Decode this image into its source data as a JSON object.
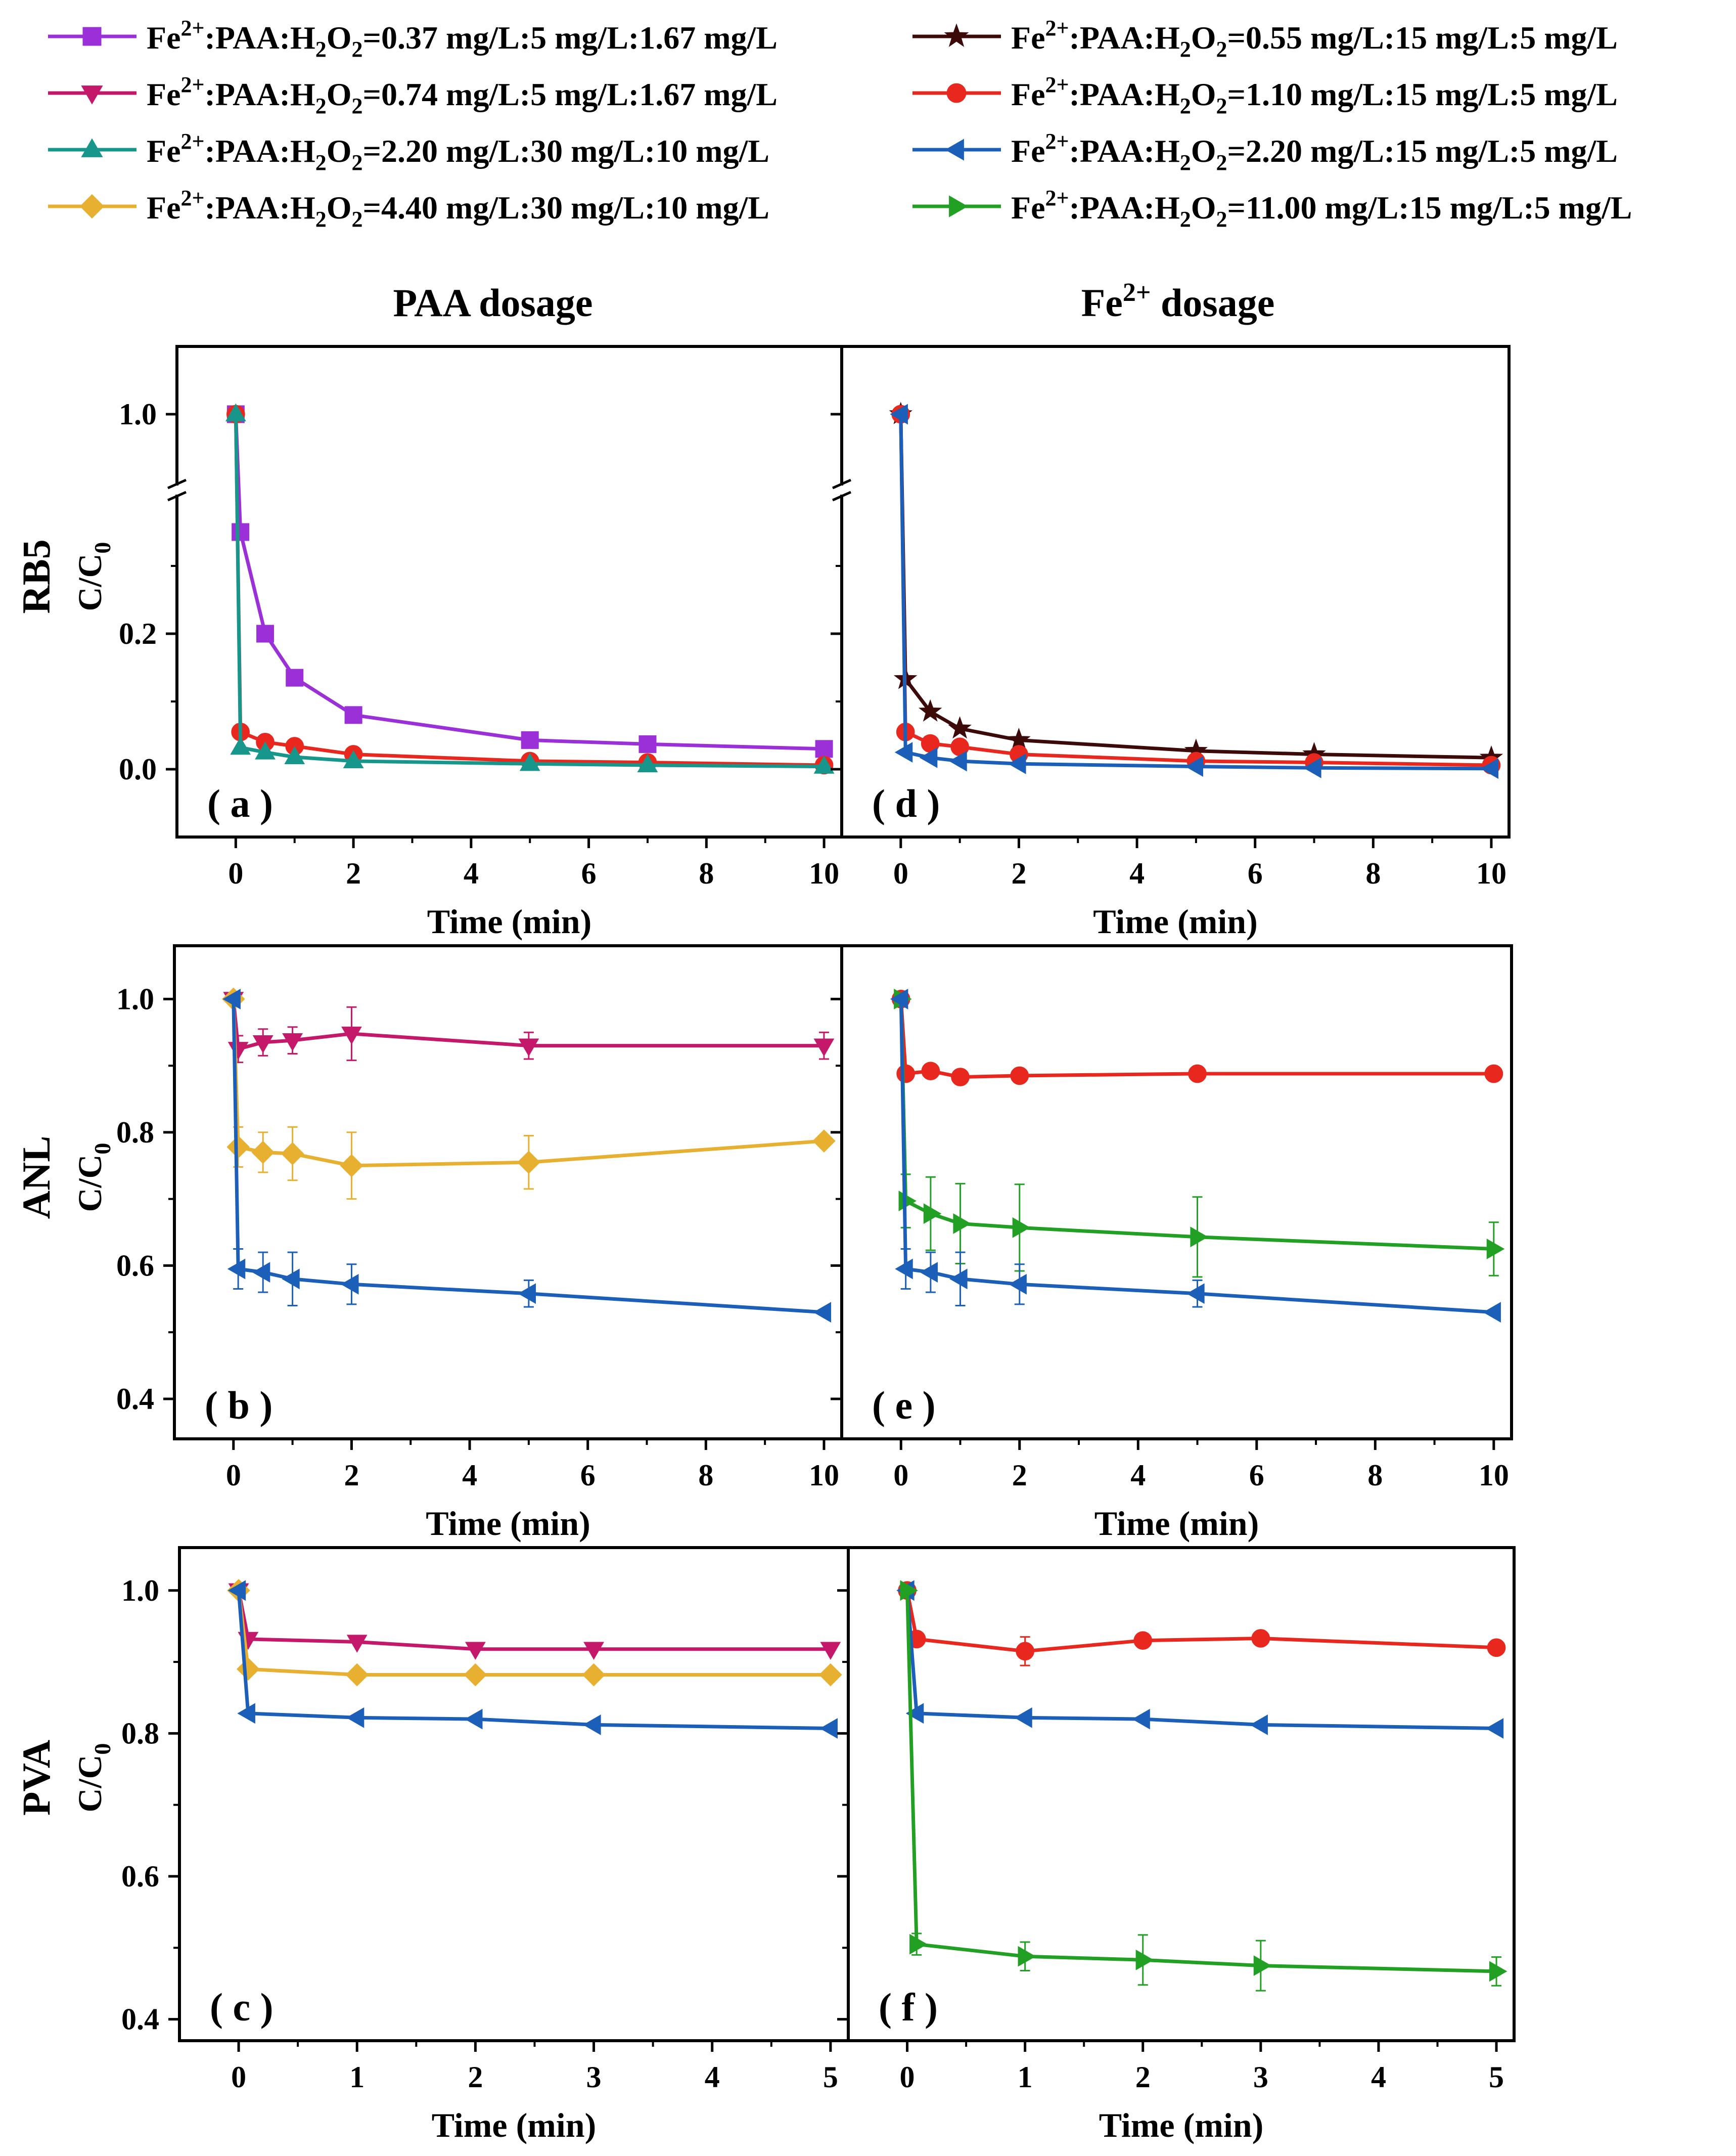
{
  "legend": [
    {
      "id": "s1",
      "formula_prefix": "Fe",
      "sup": "2+",
      "mid": ":PAA:H",
      "sub1": "2",
      "mid2": "O",
      "sub2": "2",
      "suffix": "=0.37 mg/L:5 mg/L:1.67 mg/L",
      "color": "#9b30d9",
      "marker": "square"
    },
    {
      "id": "s5",
      "formula_prefix": "Fe",
      "sup": "2+",
      "mid": ":PAA:H",
      "sub1": "2",
      "mid2": "O",
      "sub2": "2",
      "suffix": "=0.55 mg/L:15 mg/L:5 mg/L",
      "color": "#3d0a0a",
      "marker": "star"
    },
    {
      "id": "s2",
      "formula_prefix": "Fe",
      "sup": "2+",
      "mid": ":PAA:H",
      "sub1": "2",
      "mid2": "O",
      "sub2": "2",
      "suffix": "=0.74 mg/L:5 mg/L:1.67 mg/L",
      "color": "#c4186a",
      "marker": "triangle-down"
    },
    {
      "id": "s6",
      "formula_prefix": "Fe",
      "sup": "2+",
      "mid": ":PAA:H",
      "sub1": "2",
      "mid2": "O",
      "sub2": "2",
      "suffix": "=1.10 mg/L:15 mg/L:5 mg/L",
      "color": "#e8281e",
      "marker": "circle"
    },
    {
      "id": "s3",
      "formula_prefix": "Fe",
      "sup": "2+",
      "mid": ":PAA:H",
      "sub1": "2",
      "mid2": "O",
      "sub2": "2",
      "suffix": "=2.20 mg/L:30 mg/L:10 mg/L",
      "color": "#17968c",
      "marker": "triangle-up"
    },
    {
      "id": "s7",
      "formula_prefix": "Fe",
      "sup": "2+",
      "mid": ":PAA:H",
      "sub1": "2",
      "mid2": "O",
      "sub2": "2",
      "suffix": "=2.20 mg/L:15 mg/L:5 mg/L",
      "color": "#1c5fb8",
      "marker": "triangle-left"
    },
    {
      "id": "s4",
      "formula_prefix": "Fe",
      "sup": "2+",
      "mid": ":PAA:H",
      "sub1": "2",
      "mid2": "O",
      "sub2": "2",
      "suffix": "=4.40 mg/L:30 mg/L:10 mg/L",
      "color": "#e8b030",
      "marker": "diamond"
    },
    {
      "id": "s8",
      "formula_prefix": "Fe",
      "sup": "2+",
      "mid": ":PAA:H",
      "sub1": "2",
      "mid2": "O",
      "sub2": "2",
      "suffix": "=11.00 mg/L:15 mg/L:5 mg/L",
      "color": "#22a024",
      "marker": "triangle-right"
    }
  ],
  "column_titles": {
    "left": "PAA dosage",
    "right_prefix": "Fe",
    "right_sup": "2+",
    "right_suffix": " dosage"
  },
  "row_labels": {
    "rb5": "RB5",
    "anl": "ANL",
    "pva": "PVA",
    "ylabel_main": "C/C",
    "ylabel_sub": "0"
  },
  "chart_data": [
    {
      "panel": "a",
      "label": "( a )",
      "type": "line",
      "xlabel": "Time (min)",
      "ylabel": "C/C0",
      "xlim": [
        -1,
        10.3
      ],
      "xticks": [
        "0",
        "2",
        "4",
        "6",
        "8",
        "10"
      ],
      "ylim_lower": [
        -0.1,
        0.4
      ],
      "ylim_upper": [
        0.95,
        1.05
      ],
      "axis_break": true,
      "yticks": [
        "0.0",
        "0.2",
        "1.0"
      ],
      "series": [
        {
          "ref": "s1",
          "x": [
            0,
            0.08,
            0.5,
            1,
            2,
            5,
            7,
            10
          ],
          "y": [
            1.0,
            0.35,
            0.2,
            0.135,
            0.08,
            0.043,
            0.037,
            0.03
          ]
        },
        {
          "ref": "s6",
          "x": [
            0,
            0.08,
            0.5,
            1,
            2,
            5,
            7,
            10
          ],
          "y": [
            1.0,
            0.055,
            0.04,
            0.034,
            0.022,
            0.012,
            0.01,
            0.006
          ]
        },
        {
          "ref": "s3",
          "x": [
            0,
            0.08,
            0.5,
            1,
            2,
            5,
            7,
            10
          ],
          "y": [
            1.0,
            0.032,
            0.025,
            0.018,
            0.012,
            0.008,
            0.006,
            0.004
          ]
        }
      ]
    },
    {
      "panel": "d",
      "label": "( d )",
      "type": "line",
      "xlabel": "Time (min)",
      "ylabel": "C/C0",
      "xlim": [
        -1,
        10.3
      ],
      "xticks": [
        "0",
        "2",
        "4",
        "6",
        "8",
        "10"
      ],
      "ylim_lower": [
        -0.1,
        0.4
      ],
      "ylim_upper": [
        0.95,
        1.05
      ],
      "axis_break": true,
      "yticks": [
        "0.0",
        "0.2",
        "1.0"
      ],
      "series": [
        {
          "ref": "s5",
          "x": [
            0,
            0.08,
            0.5,
            1,
            2,
            5,
            7,
            10
          ],
          "y": [
            1.0,
            0.133,
            0.085,
            0.06,
            0.043,
            0.027,
            0.022,
            0.017
          ]
        },
        {
          "ref": "s6",
          "x": [
            0,
            0.08,
            0.5,
            1,
            2,
            5,
            7,
            10
          ],
          "y": [
            1.0,
            0.055,
            0.038,
            0.033,
            0.022,
            0.012,
            0.01,
            0.006
          ]
        },
        {
          "ref": "s7",
          "x": [
            0,
            0.08,
            0.5,
            1,
            2,
            5,
            7,
            10
          ],
          "y": [
            1.0,
            0.025,
            0.017,
            0.012,
            0.008,
            0.004,
            0.002,
            0.001
          ]
        }
      ]
    },
    {
      "panel": "b",
      "label": "( b )",
      "type": "line",
      "xlabel": "Time (min)",
      "ylabel": "C/C0",
      "xlim": [
        -1,
        10.3
      ],
      "xticks": [
        "0",
        "2",
        "4",
        "6",
        "8",
        "10"
      ],
      "ylim": [
        0.34,
        1.08
      ],
      "yticks": [
        "0.4",
        "0.6",
        "0.8",
        "1.0"
      ],
      "series": [
        {
          "ref": "s2",
          "x": [
            0,
            0.08,
            0.5,
            1,
            2,
            5,
            10
          ],
          "y": [
            1.0,
            0.925,
            0.935,
            0.938,
            0.948,
            0.93,
            0.93
          ],
          "err": [
            0,
            0.02,
            0.02,
            0.02,
            0.04,
            0.02,
            0.02
          ]
        },
        {
          "ref": "s4",
          "x": [
            0,
            0.08,
            0.5,
            1,
            2,
            5,
            10
          ],
          "y": [
            1.0,
            0.778,
            0.77,
            0.768,
            0.75,
            0.755,
            0.787
          ],
          "err": [
            0,
            0.03,
            0.03,
            0.04,
            0.05,
            0.04,
            0.0
          ]
        },
        {
          "ref": "s7",
          "x": [
            0,
            0.08,
            0.5,
            1,
            2,
            5,
            10
          ],
          "y": [
            1.0,
            0.595,
            0.59,
            0.58,
            0.572,
            0.558,
            0.53
          ],
          "err": [
            0,
            0.03,
            0.03,
            0.04,
            0.03,
            0.02,
            0.0
          ]
        }
      ]
    },
    {
      "panel": "e",
      "label": "( e )",
      "type": "line",
      "xlabel": "Time (min)",
      "ylabel": "C/C0",
      "xlim": [
        -1,
        10.3
      ],
      "xticks": [
        "0",
        "2",
        "4",
        "6",
        "8",
        "10"
      ],
      "ylim": [
        0.34,
        1.08
      ],
      "yticks": [
        "0.4",
        "0.6",
        "0.8",
        "1.0"
      ],
      "series": [
        {
          "ref": "s6",
          "x": [
            0,
            0.08,
            0.5,
            1,
            2,
            5,
            10
          ],
          "y": [
            1.0,
            0.888,
            0.892,
            0.883,
            0.885,
            0.888,
            0.888
          ],
          "err": [
            0,
            0,
            0,
            0,
            0,
            0,
            0
          ]
        },
        {
          "ref": "s8",
          "x": [
            0,
            0.08,
            0.5,
            1,
            2,
            5,
            10
          ],
          "y": [
            1.0,
            0.697,
            0.678,
            0.663,
            0.657,
            0.643,
            0.625
          ],
          "err": [
            0,
            0.04,
            0.055,
            0.06,
            0.065,
            0.06,
            0.04
          ]
        },
        {
          "ref": "s7",
          "x": [
            0,
            0.08,
            0.5,
            1,
            2,
            5,
            10
          ],
          "y": [
            1.0,
            0.595,
            0.59,
            0.58,
            0.572,
            0.558,
            0.53
          ],
          "err": [
            0,
            0.03,
            0.03,
            0.04,
            0.03,
            0.02,
            0.0
          ]
        }
      ]
    },
    {
      "panel": "c",
      "label": "( c )",
      "type": "line",
      "xlabel": "Time (min)",
      "ylabel": "C/C0",
      "xlim": [
        -0.5,
        5.15
      ],
      "xticks": [
        "0",
        "1",
        "2",
        "3",
        "4",
        "5"
      ],
      "ylim": [
        0.37,
        1.06
      ],
      "yticks": [
        "0.4",
        "0.6",
        "0.8",
        "1.0"
      ],
      "series": [
        {
          "ref": "s2",
          "x": [
            0,
            0.08,
            1,
            2,
            3,
            5
          ],
          "y": [
            1.0,
            0.932,
            0.928,
            0.918,
            0.918,
            0.918
          ]
        },
        {
          "ref": "s4",
          "x": [
            0,
            0.08,
            1,
            2,
            3,
            5
          ],
          "y": [
            1.0,
            0.89,
            0.882,
            0.882,
            0.882,
            0.882
          ]
        },
        {
          "ref": "s7",
          "x": [
            0,
            0.08,
            1,
            2,
            3,
            5
          ],
          "y": [
            1.0,
            0.828,
            0.822,
            0.82,
            0.812,
            0.807
          ]
        }
      ]
    },
    {
      "panel": "f",
      "label": "( f )",
      "type": "line",
      "xlabel": "Time (min)",
      "ylabel": "C/C0",
      "xlim": [
        -0.5,
        5.15
      ],
      "xticks": [
        "0",
        "1",
        "2",
        "3",
        "4",
        "5"
      ],
      "ylim": [
        0.37,
        1.06
      ],
      "yticks": [
        "0.4",
        "0.6",
        "0.8",
        "1.0"
      ],
      "series": [
        {
          "ref": "s6",
          "x": [
            0,
            0.08,
            1,
            2,
            3,
            5
          ],
          "y": [
            1.0,
            0.932,
            0.915,
            0.93,
            0.933,
            0.92
          ],
          "err": [
            0,
            0,
            0.02,
            0,
            0,
            0
          ]
        },
        {
          "ref": "s7",
          "x": [
            0,
            0.08,
            1,
            2,
            3,
            5
          ],
          "y": [
            1.0,
            0.828,
            0.822,
            0.82,
            0.812,
            0.807
          ],
          "err": [
            0,
            0,
            0,
            0,
            0,
            0
          ]
        },
        {
          "ref": "s8",
          "x": [
            0,
            0.08,
            1,
            2,
            3,
            5
          ],
          "y": [
            1.0,
            0.505,
            0.488,
            0.483,
            0.475,
            0.467
          ],
          "err": [
            0,
            0.015,
            0.02,
            0.035,
            0.035,
            0.02
          ]
        }
      ]
    }
  ]
}
